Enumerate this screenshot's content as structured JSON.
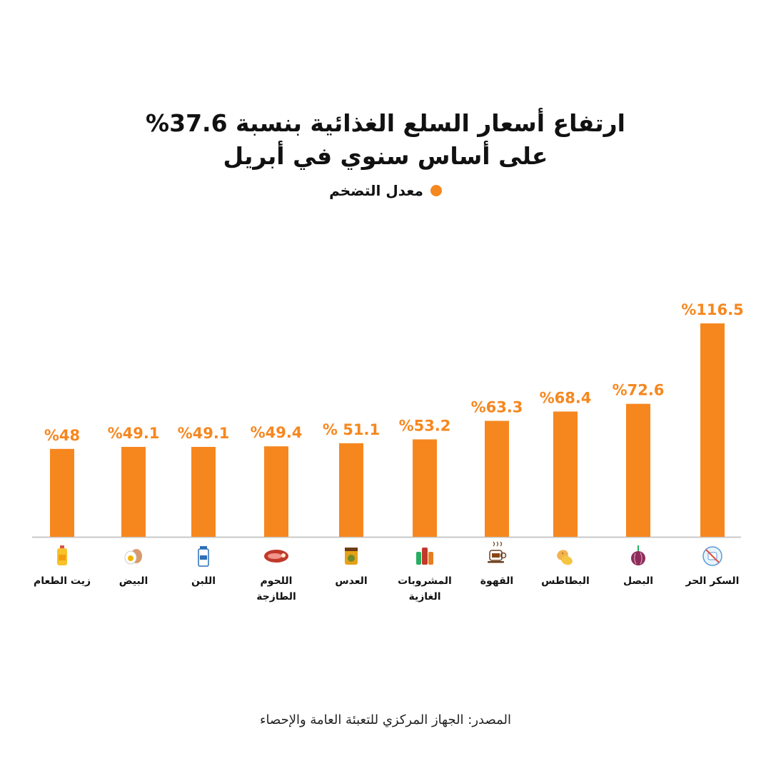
{
  "title_line1": "ارتفاع أسعار السلع الغذائية بنسبة 37.6%",
  "title_line2": "على أساس سنوي في أبريل",
  "legend": {
    "label": "معدل التضخم",
    "color": "#f6871f"
  },
  "source": "المصدر: الجهاز المركزي للتعبئة العامة والإحصاء",
  "chart_data": {
    "type": "bar",
    "categories": [
      "زيت الطعام",
      "البيض",
      "اللبن",
      "اللحوم الطازجة",
      "العدس",
      "المشروبات الغازية",
      "القهوة",
      "البطاطس",
      "البصل",
      "السكر الحر"
    ],
    "category_lines": [
      [
        "زيت الطعام"
      ],
      [
        "البيض"
      ],
      [
        "اللبن"
      ],
      [
        "اللحوم",
        "الطازجة"
      ],
      [
        "العدس"
      ],
      [
        "المشروبات",
        "الغازية"
      ],
      [
        "القهوة"
      ],
      [
        "البطاطس"
      ],
      [
        "البصل"
      ],
      [
        "السكر الحر"
      ]
    ],
    "values": [
      48,
      49.1,
      49.1,
      49.4,
      51.1,
      53.2,
      63.3,
      68.4,
      72.6,
      116.5
    ],
    "value_labels": [
      "%48",
      "%49.1",
      "%49.1",
      "%49.4",
      "% 51.1",
      "%53.2",
      "%63.3",
      "%68.4",
      "%72.6",
      "%116.5"
    ],
    "icons": [
      "oil-bottle-icon",
      "egg-icon",
      "milk-icon",
      "meat-icon",
      "lentils-icon",
      "soda-icon",
      "coffee-icon",
      "potato-icon",
      "onion-icon",
      "sugar-icon"
    ],
    "series": [
      {
        "name": "معدل التضخم",
        "values": [
          48,
          49.1,
          49.1,
          49.4,
          51.1,
          53.2,
          63.3,
          68.4,
          72.6,
          116.5
        ]
      }
    ],
    "ylim": [
      0,
      116.5
    ],
    "grid": false,
    "legend_position": "top-center",
    "bar_color": "#f6871f",
    "label_color": "#f6871f"
  }
}
